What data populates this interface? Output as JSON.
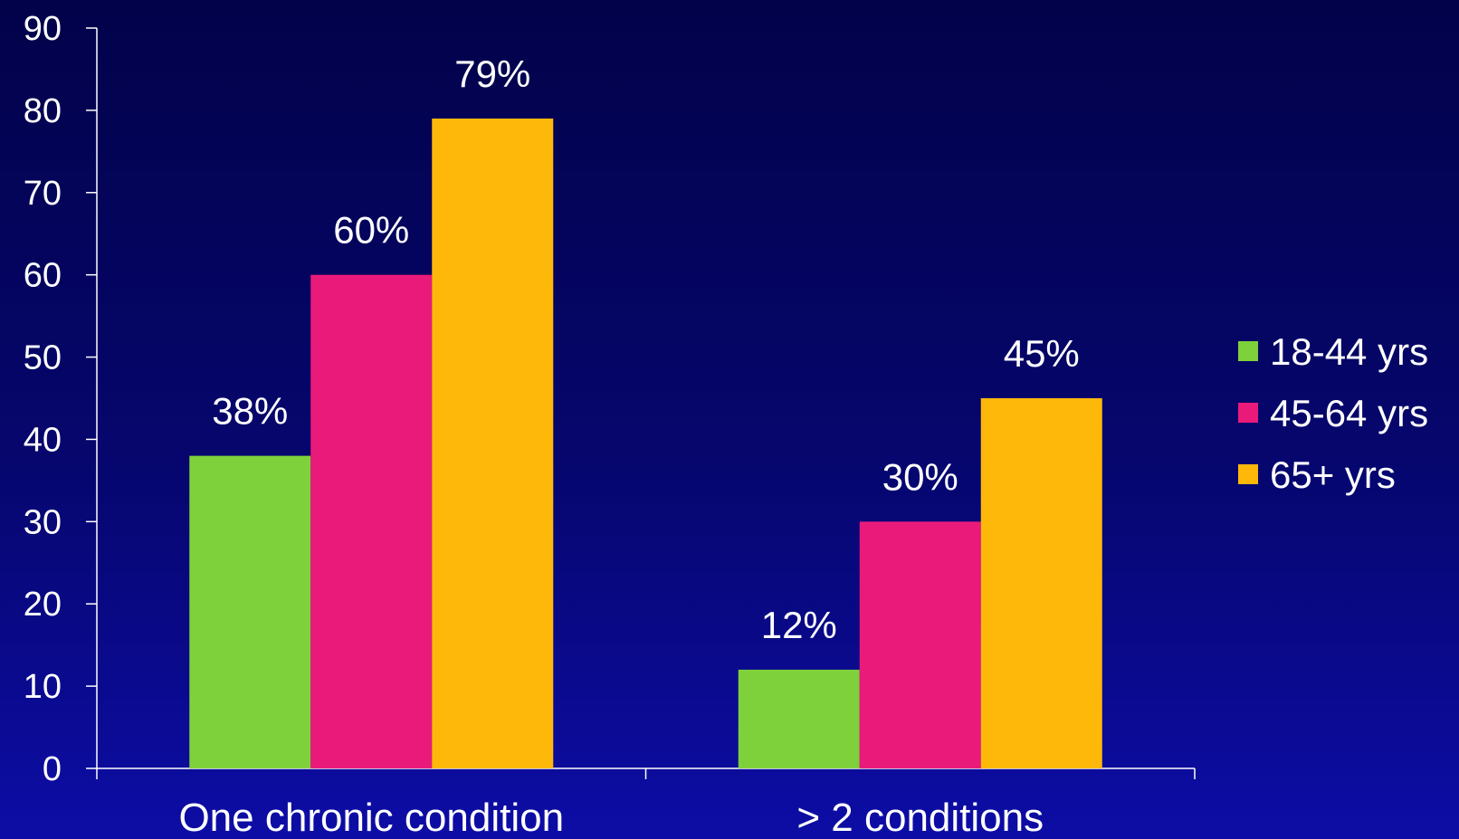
{
  "chart_data": {
    "type": "bar",
    "title": "",
    "xlabel": "",
    "ylabel": "",
    "ylim": [
      0,
      90
    ],
    "yticks": [
      0,
      10,
      20,
      30,
      40,
      50,
      60,
      70,
      80,
      90
    ],
    "categories": [
      "One chronic condition",
      "> 2 conditions"
    ],
    "series": [
      {
        "name": "18-44 yrs",
        "values": [
          38,
          12
        ],
        "labels": [
          "38%",
          "12%"
        ],
        "color": "#7fd13b"
      },
      {
        "name": "45-64 yrs",
        "values": [
          60,
          30
        ],
        "labels": [
          "60%",
          "30%"
        ],
        "color": "#ea1a7a"
      },
      {
        "name": "65+ yrs",
        "values": [
          79,
          45
        ],
        "labels": [
          "79%",
          "45%"
        ],
        "color": "#feb80a"
      }
    ],
    "legend": "right",
    "grid": false
  }
}
